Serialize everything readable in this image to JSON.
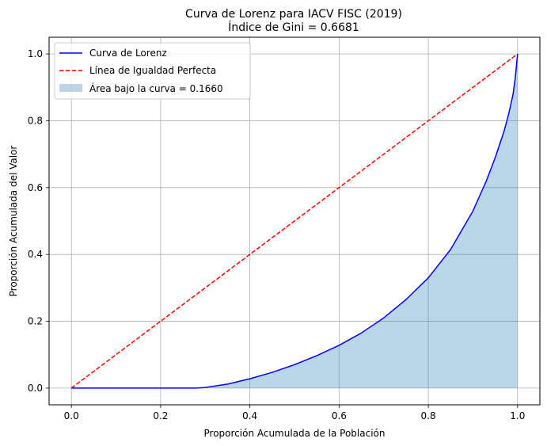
{
  "chart_data": {
    "type": "line",
    "title": "Curva de Lorenz para IACV FISC (2019)",
    "subtitle": "Índice de Gini = 0.6681",
    "xlabel": "Proporción Acumulada de la Población",
    "ylabel": "Proporción Acumulada del Valor",
    "xlim": [
      -0.05,
      1.05
    ],
    "ylim": [
      -0.05,
      1.05
    ],
    "xticks": [
      0.0,
      0.2,
      0.4,
      0.6,
      0.8,
      1.0
    ],
    "yticks": [
      0.0,
      0.2,
      0.4,
      0.6,
      0.8,
      1.0
    ],
    "xtick_labels": [
      "0.0",
      "0.2",
      "0.4",
      "0.6",
      "0.8",
      "1.0"
    ],
    "ytick_labels": [
      "0.0",
      "0.2",
      "0.4",
      "0.6",
      "0.8",
      "1.0"
    ],
    "grid": true,
    "legend_position": "top-left",
    "series": [
      {
        "name": "Curva de Lorenz",
        "style": "solid",
        "color": "#0000ff",
        "x": [
          0.0,
          0.1,
          0.2,
          0.28,
          0.3,
          0.35,
          0.4,
          0.45,
          0.5,
          0.55,
          0.6,
          0.65,
          0.7,
          0.75,
          0.8,
          0.85,
          0.9,
          0.93,
          0.95,
          0.97,
          0.98,
          0.99,
          0.995,
          1.0
        ],
        "y": [
          0.0,
          0.0,
          0.0,
          0.0,
          0.002,
          0.012,
          0.028,
          0.047,
          0.07,
          0.097,
          0.128,
          0.165,
          0.21,
          0.265,
          0.33,
          0.415,
          0.53,
          0.62,
          0.69,
          0.77,
          0.82,
          0.88,
          0.93,
          1.0
        ]
      },
      {
        "name": "Línea de Igualdad Perfecta",
        "style": "dashed",
        "color": "#ff0000",
        "x": [
          0.0,
          1.0
        ],
        "y": [
          0.0,
          1.0
        ]
      }
    ],
    "area": {
      "name": "Área bajo la curva = 0.1660",
      "color": "#1f77b4",
      "alpha": 0.3
    }
  }
}
